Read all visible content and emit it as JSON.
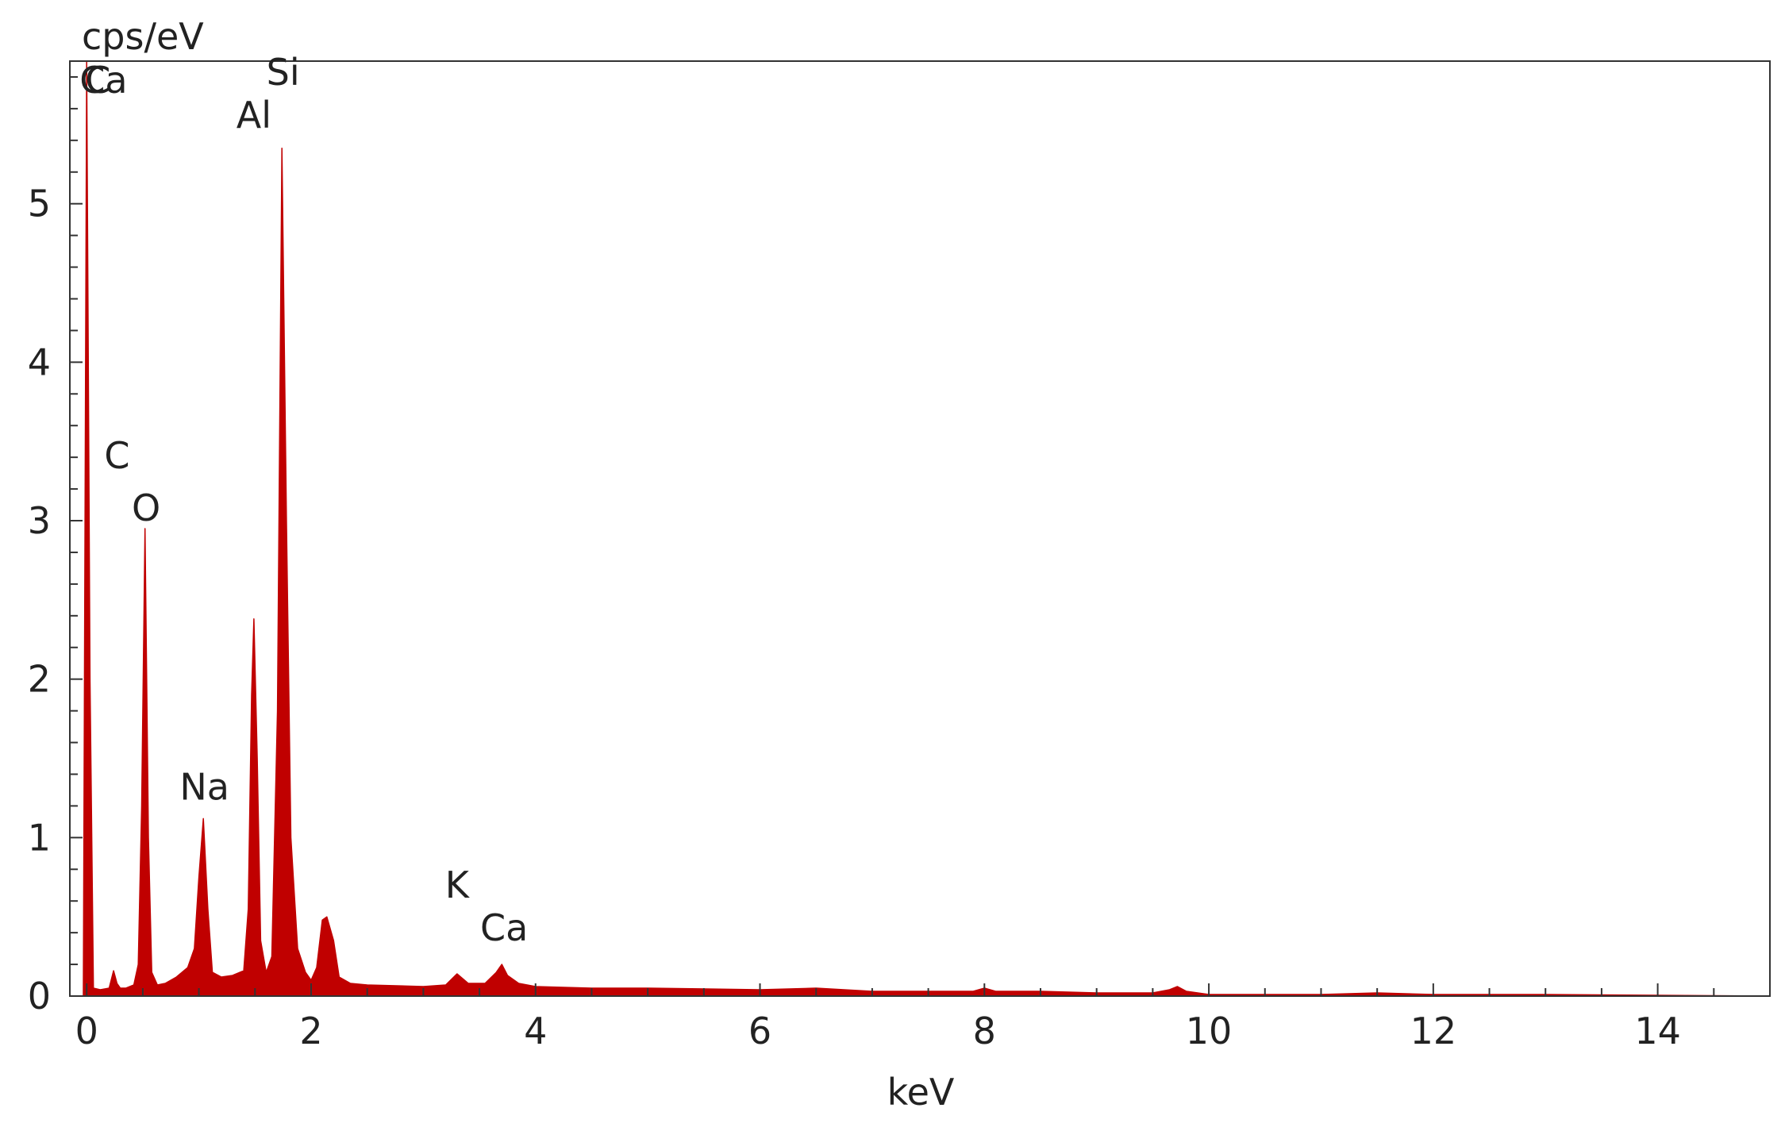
{
  "chart_data": {
    "type": "area",
    "title": "",
    "xlabel": "keV",
    "ylabel": "cps/eV",
    "xlim": [
      -0.15,
      15
    ],
    "ylim": [
      0,
      5.9
    ],
    "grid": false,
    "legend": "none",
    "xticks": [
      {
        "value": 0,
        "label": "0"
      },
      {
        "value": 2,
        "label": "2"
      },
      {
        "value": 4,
        "label": "4"
      },
      {
        "value": 6,
        "label": "6"
      },
      {
        "value": 8,
        "label": "8"
      },
      {
        "value": 10,
        "label": "10"
      },
      {
        "value": 12,
        "label": "12"
      },
      {
        "value": 14,
        "label": "14"
      }
    ],
    "yticks": [
      {
        "value": 0,
        "label": "0"
      },
      {
        "value": 1,
        "label": "1"
      },
      {
        "value": 2,
        "label": "2"
      },
      {
        "value": 3,
        "label": "3"
      },
      {
        "value": 4,
        "label": "4"
      },
      {
        "value": 5,
        "label": "5"
      }
    ],
    "series": [
      {
        "color": "#c00000",
        "x": [
          -0.03,
          0.0,
          0.03,
          0.06,
          0.12,
          0.2,
          0.24,
          0.27,
          0.3,
          0.35,
          0.42,
          0.46,
          0.49,
          0.52,
          0.55,
          0.58,
          0.63,
          0.7,
          0.8,
          0.9,
          0.96,
          1.0,
          1.04,
          1.08,
          1.12,
          1.2,
          1.3,
          1.4,
          1.44,
          1.47,
          1.49,
          1.52,
          1.55,
          1.6,
          1.65,
          1.7,
          1.74,
          1.78,
          1.82,
          1.88,
          1.95,
          2.0,
          2.05,
          2.1,
          2.14,
          2.2,
          2.25,
          2.35,
          2.5,
          3.0,
          3.2,
          3.3,
          3.4,
          3.55,
          3.65,
          3.7,
          3.75,
          3.85,
          4.0,
          4.5,
          5.0,
          6.0,
          6.5,
          7.0,
          7.5,
          7.9,
          8.0,
          8.1,
          8.5,
          9.0,
          9.5,
          9.65,
          9.72,
          9.8,
          10.0,
          10.5,
          11.0,
          11.5,
          12.0,
          13.0,
          14.0,
          15.0
        ],
        "y": [
          0.0,
          5.9,
          2.0,
          0.05,
          0.04,
          0.05,
          0.16,
          0.08,
          0.05,
          0.05,
          0.07,
          0.2,
          1.2,
          2.95,
          1.0,
          0.15,
          0.07,
          0.08,
          0.12,
          0.18,
          0.3,
          0.75,
          1.12,
          0.55,
          0.15,
          0.12,
          0.13,
          0.16,
          0.55,
          1.9,
          2.38,
          1.5,
          0.35,
          0.15,
          0.25,
          1.8,
          5.35,
          3.0,
          1.0,
          0.3,
          0.15,
          0.1,
          0.18,
          0.48,
          0.5,
          0.35,
          0.12,
          0.08,
          0.07,
          0.06,
          0.07,
          0.14,
          0.08,
          0.08,
          0.15,
          0.2,
          0.13,
          0.08,
          0.06,
          0.05,
          0.05,
          0.04,
          0.05,
          0.03,
          0.03,
          0.03,
          0.05,
          0.03,
          0.03,
          0.02,
          0.02,
          0.04,
          0.06,
          0.03,
          0.01,
          0.01,
          0.01,
          0.02,
          0.01,
          0.01,
          0.005,
          0.0
        ]
      }
    ],
    "annotations": [
      {
        "text": "C",
        "x": 0.1,
        "y": 5.7
      },
      {
        "text": "Ca",
        "x": 0.15,
        "y": 5.7
      },
      {
        "text": "Si",
        "x": 1.75,
        "y": 5.75
      },
      {
        "text": "Al",
        "x": 1.49,
        "y": 5.48
      },
      {
        "text": "C",
        "x": 0.27,
        "y": 3.33
      },
      {
        "text": "O",
        "x": 0.53,
        "y": 3.0
      },
      {
        "text": "Na",
        "x": 1.05,
        "y": 1.24
      },
      {
        "text": "K",
        "x": 3.3,
        "y": 0.62
      },
      {
        "text": "Ca",
        "x": 3.72,
        "y": 0.35
      }
    ]
  }
}
